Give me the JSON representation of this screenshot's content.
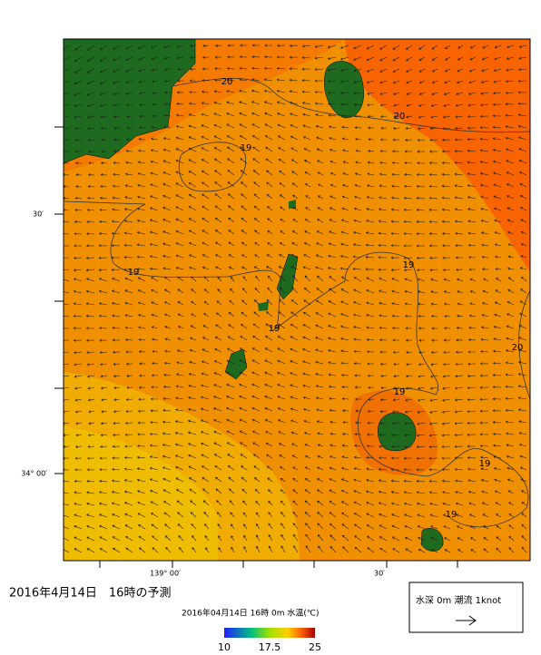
{
  "map": {
    "lat_labels": [
      "30′",
      "34° 00′"
    ],
    "lon_labels": [
      "139° 00′",
      "30′"
    ],
    "contour_labels": [
      "20",
      "20",
      "19",
      "19",
      "19",
      "19",
      "20",
      "19",
      "19",
      "19"
    ],
    "title": "2016年4月14日　16時の予測",
    "subtitle": "2016年04月14日 16時 0m 水温(℃)",
    "legend": "水深 0m 潮流 1knot",
    "colorbar": {
      "min": 10,
      "max": 25,
      "ticks": [
        10,
        17.5,
        25
      ]
    }
  }
}
